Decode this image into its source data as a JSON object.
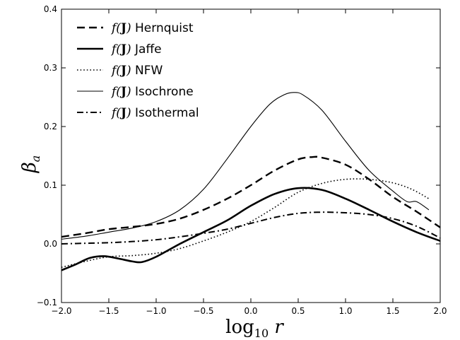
{
  "chart_data": {
    "type": "line",
    "xlabel": "log₁₀ r",
    "ylabel": "βₐ",
    "xlim": [
      -2.0,
      2.0
    ],
    "ylim": [
      -0.1,
      0.4
    ],
    "xticks": [
      -2.0,
      -1.5,
      -1.0,
      -0.5,
      0.0,
      0.5,
      1.0,
      1.5,
      2.0
    ],
    "xtick_labels": [
      "−2.0",
      "−1.5",
      "−1.0",
      "−0.5",
      "0.0",
      "0.5",
      "1.0",
      "1.5",
      "2.0"
    ],
    "yticks": [
      -0.1,
      0.0,
      0.1,
      0.2,
      0.3,
      0.4
    ],
    "ytick_labels": [
      "−0.1",
      "0.0",
      "0.1",
      "0.2",
      "0.3",
      "0.4"
    ],
    "grid": false,
    "legend_position": "top-left",
    "legend_prefix": "f(J)",
    "series": [
      {
        "name": "Hernquist",
        "linestyle": "dashed",
        "linewidth": 2.4,
        "color": "#000000",
        "x": [
          -2.0,
          -1.75,
          -1.5,
          -1.25,
          -1.0,
          -0.75,
          -0.5,
          -0.25,
          0.0,
          0.25,
          0.5,
          0.65,
          0.75,
          1.0,
          1.25,
          1.5,
          1.75,
          2.0
        ],
        "y": [
          0.012,
          0.018,
          0.025,
          0.029,
          0.034,
          0.043,
          0.058,
          0.077,
          0.1,
          0.125,
          0.144,
          0.148,
          0.147,
          0.135,
          0.11,
          0.08,
          0.055,
          0.028
        ]
      },
      {
        "name": "Jaffe",
        "linestyle": "solid",
        "linewidth": 2.6,
        "color": "#000000",
        "x": [
          -2.0,
          -1.85,
          -1.7,
          -1.55,
          -1.4,
          -1.25,
          -1.15,
          -1.0,
          -0.75,
          -0.5,
          -0.25,
          0.0,
          0.25,
          0.5,
          0.75,
          1.0,
          1.25,
          1.5,
          1.75,
          2.0
        ],
        "y": [
          -0.045,
          -0.035,
          -0.024,
          -0.021,
          -0.025,
          -0.03,
          -0.031,
          -0.022,
          0.0,
          0.02,
          0.04,
          0.065,
          0.085,
          0.095,
          0.092,
          0.077,
          0.058,
          0.038,
          0.02,
          0.005
        ]
      },
      {
        "name": "NFW",
        "linestyle": "dotted",
        "linewidth": 1.6,
        "color": "#000000",
        "x": [
          -2.0,
          -1.75,
          -1.5,
          -1.25,
          -1.0,
          -0.75,
          -0.5,
          -0.25,
          0.0,
          0.25,
          0.5,
          0.75,
          1.0,
          1.25,
          1.5,
          1.7,
          1.88
        ],
        "y": [
          -0.04,
          -0.03,
          -0.022,
          -0.02,
          -0.016,
          -0.008,
          0.005,
          0.02,
          0.038,
          0.062,
          0.088,
          0.103,
          0.11,
          0.11,
          0.104,
          0.093,
          0.077
        ]
      },
      {
        "name": "Isochrone",
        "linestyle": "solid",
        "linewidth": 1.1,
        "color": "#000000",
        "x": [
          -2.0,
          -1.75,
          -1.5,
          -1.25,
          -1.0,
          -0.75,
          -0.5,
          -0.25,
          0.0,
          0.2,
          0.35,
          0.45,
          0.55,
          0.75,
          1.0,
          1.25,
          1.5,
          1.65,
          1.75,
          1.88
        ],
        "y": [
          0.008,
          0.013,
          0.02,
          0.027,
          0.038,
          0.058,
          0.093,
          0.145,
          0.2,
          0.238,
          0.254,
          0.258,
          0.254,
          0.228,
          0.175,
          0.125,
          0.09,
          0.072,
          0.072,
          0.058
        ]
      },
      {
        "name": "Isothermal",
        "linestyle": "dashdot",
        "linewidth": 2.0,
        "color": "#000000",
        "x": [
          -2.0,
          -1.75,
          -1.5,
          -1.25,
          -1.0,
          -0.75,
          -0.5,
          -0.25,
          0.0,
          0.25,
          0.5,
          0.75,
          1.0,
          1.25,
          1.5,
          1.75,
          2.0
        ],
        "y": [
          0.0,
          0.001,
          0.002,
          0.004,
          0.007,
          0.012,
          0.018,
          0.025,
          0.035,
          0.045,
          0.052,
          0.054,
          0.053,
          0.05,
          0.043,
          0.03,
          0.01
        ]
      }
    ]
  }
}
